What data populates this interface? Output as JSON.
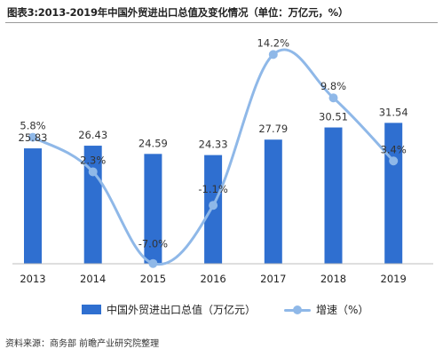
{
  "title": "图表3:2013-2019年中国外贸进出口总值及变化情况（单位：万亿元，%）",
  "source": "资料来源：商务部 前瞻产业研究院整理",
  "colors": {
    "bar": "#2f6fd0",
    "line": "#8fb8e8",
    "text": "#222222"
  },
  "chart_data": {
    "type": "bar",
    "categories": [
      "2013",
      "2014",
      "2015",
      "2016",
      "2017",
      "2018",
      "2019"
    ],
    "series": [
      {
        "name": "中国外贸进出口总值（万亿元）",
        "type": "bar",
        "values": [
          25.83,
          26.43,
          24.59,
          24.33,
          27.79,
          30.51,
          31.54
        ],
        "labels": [
          "25.83",
          "26.43",
          "24.59",
          "24.33",
          "27.79",
          "30.51",
          "31.54"
        ]
      },
      {
        "name": "增速（%）",
        "type": "line",
        "axis": "secondary",
        "values": [
          5.8,
          2.3,
          -7.0,
          -1.1,
          14.2,
          9.8,
          3.4
        ],
        "labels": [
          "5.8%",
          "2.3%",
          "-7.0%",
          "-1.1%",
          "14.2%",
          "9.8%",
          "3.4%"
        ]
      }
    ],
    "ylim": [
      0,
      35
    ],
    "y2lim": [
      -10,
      16
    ],
    "grid": false,
    "legend": "bottom"
  }
}
